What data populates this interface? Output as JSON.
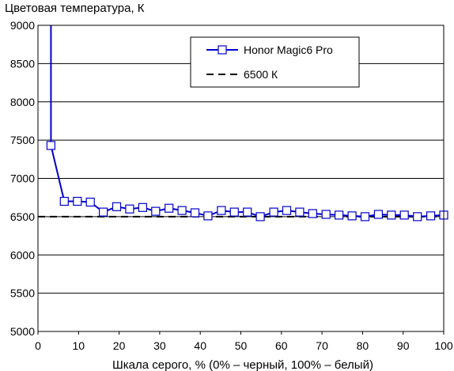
{
  "chart_data": {
    "type": "line",
    "title": "",
    "ylabel": "Цветовая температура, К",
    "xlabel": "Шкала серого, % (0% – черный, 100% – белый)",
    "xlim": [
      0,
      100
    ],
    "ylim": [
      5000,
      9000
    ],
    "xticks": [
      "0",
      "10",
      "20",
      "30",
      "40",
      "50",
      "60",
      "70",
      "80",
      "90",
      "100"
    ],
    "yticks": [
      "5000",
      "5500",
      "6000",
      "6500",
      "7000",
      "7500",
      "8000",
      "8500",
      "9000"
    ],
    "grid": "horizontal",
    "legend_position": "top-right",
    "series": [
      {
        "name": "Honor Magic6 Pro",
        "color": "#0000cc",
        "marker": "square",
        "x": [
          3.2,
          6.5,
          9.7,
          12.9,
          16.1,
          19.4,
          22.6,
          25.8,
          29,
          32.3,
          35.5,
          38.7,
          41.9,
          45.2,
          48.4,
          51.6,
          54.8,
          58.1,
          61.3,
          64.5,
          67.7,
          71,
          74.2,
          77.4,
          80.6,
          83.9,
          87.1,
          90.3,
          93.5,
          96.8,
          100
        ],
        "y": [
          7430,
          6700,
          6700,
          6690,
          6560,
          6630,
          6600,
          6620,
          6570,
          6610,
          6580,
          6550,
          6510,
          6580,
          6560,
          6560,
          6500,
          6560,
          6580,
          6560,
          6540,
          6530,
          6520,
          6510,
          6500,
          6530,
          6520,
          6520,
          6500,
          6510,
          6520
        ],
        "spike": {
          "x": 3.2,
          "y_from": 7430,
          "y_to": 9000
        }
      },
      {
        "name": "6500 К",
        "color": "#000000",
        "style": "dashed",
        "x": [
          0,
          100
        ],
        "y": [
          6500,
          6500
        ]
      }
    ]
  }
}
